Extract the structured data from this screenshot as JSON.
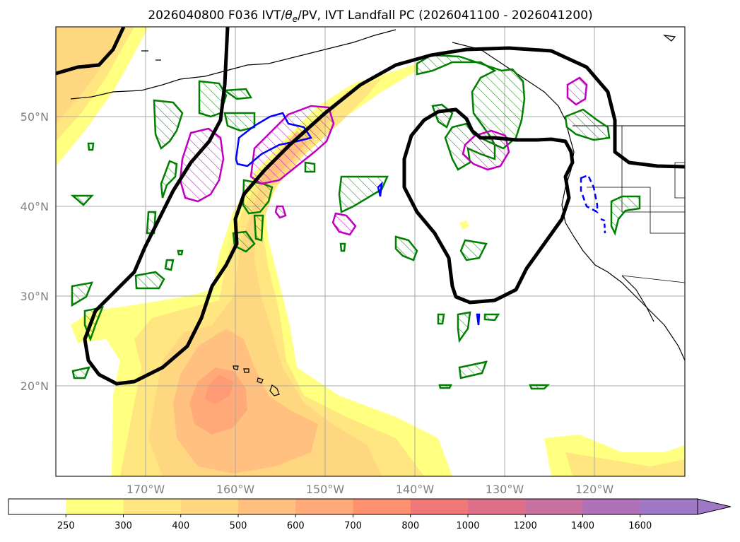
{
  "title": {
    "run": "2026040800 F036 IVT/",
    "theta": "θ",
    "theta_sub": "e",
    "rest": "/PV, IVT Landfall PC (2026041100 - 2026041200)"
  },
  "map": {
    "lon_range": [
      -180,
      -110
    ],
    "lat_range": [
      10,
      60
    ],
    "gridlines": true,
    "lat_labels": [
      {
        "lat": 50,
        "label": "50°N"
      },
      {
        "lat": 40,
        "label": "40°N"
      },
      {
        "lat": 30,
        "label": "30°N"
      },
      {
        "lat": 20,
        "label": "20°N"
      }
    ],
    "lon_labels": [
      {
        "lon": -170,
        "label": "170°W"
      },
      {
        "lon": -160,
        "label": "160°W"
      },
      {
        "lon": -150,
        "label": "150°W"
      },
      {
        "lon": -140,
        "label": "140°W"
      },
      {
        "lon": -130,
        "label": "130°W"
      },
      {
        "lon": -120,
        "label": "120°W"
      }
    ]
  },
  "colorbar": {
    "levels": [
      "250",
      "300",
      "400",
      "500",
      "600",
      "700",
      "800",
      "1000",
      "1200",
      "1400",
      "1600"
    ],
    "colors": [
      "#ffff80",
      "#ffe680",
      "#ffd780",
      "#ffc080",
      "#ffaa78",
      "#ff9070",
      "#f07878",
      "#e0708a",
      "#c870a0",
      "#b070b8",
      "#a078c8"
    ],
    "extend": "max"
  },
  "colors": {
    "ivt_250": "#ffff80",
    "ivt_300": "#ffe680",
    "ivt_400": "#ffd780",
    "ivt_500": "#ffc080",
    "ivt_600": "#ffaa78",
    "pc_contour": "#000000",
    "pv_green": "#008000",
    "theta_magenta": "#c000c0",
    "blue": "#0000ff",
    "coast": "#000000"
  }
}
